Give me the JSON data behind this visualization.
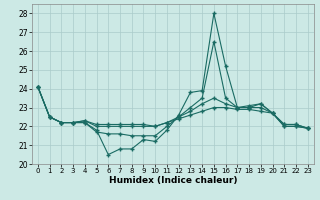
{
  "xlabel": "Humidex (Indice chaleur)",
  "xlim": [
    -0.5,
    23.5
  ],
  "ylim": [
    20,
    28.5
  ],
  "yticks": [
    20,
    21,
    22,
    23,
    24,
    25,
    26,
    27,
    28
  ],
  "xticks": [
    0,
    1,
    2,
    3,
    4,
    5,
    6,
    7,
    8,
    9,
    10,
    11,
    12,
    13,
    14,
    15,
    16,
    17,
    18,
    19,
    20,
    21,
    22,
    23
  ],
  "bg_color": "#cce9e5",
  "grid_color": "#aaccca",
  "line_color": "#1a6b63",
  "lines": [
    {
      "x": [
        0,
        1,
        2,
        3,
        4,
        5,
        6,
        7,
        8,
        9,
        10,
        11,
        12,
        13,
        14,
        15,
        16,
        17,
        18,
        19,
        20,
        21,
        22,
        23
      ],
      "y": [
        24.1,
        22.5,
        22.2,
        22.2,
        22.2,
        21.8,
        20.5,
        20.8,
        20.8,
        21.3,
        21.2,
        21.8,
        22.6,
        23.8,
        23.9,
        28.0,
        25.2,
        23.0,
        23.0,
        23.2,
        22.7,
        22.0,
        22.0,
        21.9
      ]
    },
    {
      "x": [
        0,
        1,
        2,
        3,
        4,
        5,
        6,
        7,
        8,
        9,
        10,
        11,
        12,
        13,
        14,
        15,
        16,
        17,
        18,
        19,
        20,
        21,
        22,
        23
      ],
      "y": [
        24.1,
        22.5,
        22.2,
        22.2,
        22.2,
        21.7,
        21.6,
        21.6,
        21.5,
        21.5,
        21.5,
        22.0,
        22.5,
        23.0,
        23.5,
        26.5,
        23.5,
        23.0,
        23.1,
        23.2,
        22.7,
        22.0,
        22.0,
        21.9
      ]
    },
    {
      "x": [
        0,
        1,
        2,
        3,
        4,
        5,
        6,
        7,
        8,
        9,
        10,
        11,
        12,
        13,
        14,
        15,
        16,
        17,
        18,
        19,
        20,
        21,
        22,
        23
      ],
      "y": [
        24.1,
        22.5,
        22.2,
        22.2,
        22.3,
        22.0,
        22.0,
        22.0,
        22.0,
        22.0,
        22.0,
        22.2,
        22.5,
        22.8,
        23.2,
        23.5,
        23.2,
        23.0,
        23.0,
        23.0,
        22.7,
        22.1,
        22.1,
        21.9
      ]
    },
    {
      "x": [
        0,
        1,
        2,
        3,
        4,
        5,
        6,
        7,
        8,
        9,
        10,
        11,
        12,
        13,
        14,
        15,
        16,
        17,
        18,
        19,
        20,
        21,
        22,
        23
      ],
      "y": [
        24.1,
        22.5,
        22.2,
        22.2,
        22.3,
        22.1,
        22.1,
        22.1,
        22.1,
        22.1,
        22.0,
        22.2,
        22.4,
        22.6,
        22.8,
        23.0,
        23.0,
        22.9,
        22.9,
        22.8,
        22.7,
        22.1,
        22.1,
        21.9
      ]
    }
  ]
}
